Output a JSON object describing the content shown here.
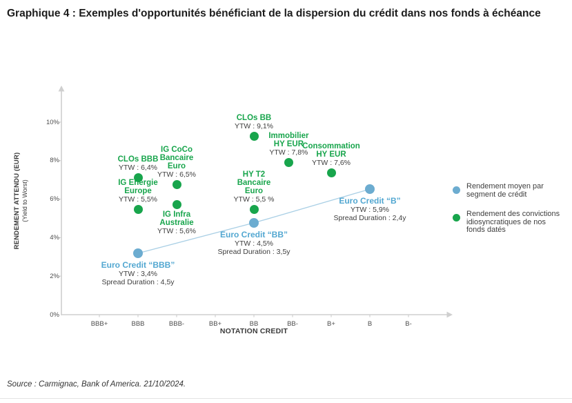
{
  "page": {
    "title": "Graphique 4 : Exemples d'opportunités bénéficiant de la dispersion du crédit dans nos fonds à échéance",
    "source": "Source : Carmignac, Bank of America. 21/10/2024."
  },
  "chart_data": {
    "type": "scatter",
    "title": "Graphique 4 : Exemples d'opportunités bénéficiant de la dispersion du crédit dans nos fonds à échéance",
    "xlabel": "NOTATION CREDIT",
    "ylabel": "RENDEMENT ATTENDU (EUR)",
    "ylabel_sub": "(Yield to Worst)",
    "x_ticks": [
      "BBB+",
      "BBB",
      "BBB-",
      "BB+",
      "BB",
      "BB-",
      "B+",
      "B",
      "B-"
    ],
    "y_ticks": [
      "0%",
      "2%",
      "4%",
      "6%",
      "8%",
      "10%"
    ],
    "y_tick_values": [
      0,
      2,
      4,
      6,
      8,
      10
    ],
    "ylim": [
      0,
      11.6
    ],
    "grid": false,
    "legend_position": "right",
    "colors": {
      "segment_dot": "#6cacd0",
      "segment_text": "#52a7d1",
      "segment_line": "#a9cfe5",
      "convictions": "#18a54c",
      "axis": "#cfcfcf",
      "dark_text": "#3e3e3e"
    },
    "series": [
      {
        "id": "segment-moyen",
        "name": "Rendement moyen par segment de crédit",
        "style": "scatter-line",
        "color": "#6cacd0",
        "points": [
          {
            "name_lines": [
              "Euro Credit “BBB”"
            ],
            "rating": "BBB",
            "x_value": 1.0,
            "y_plot": 3.19,
            "ytw_value": 3.4,
            "ytw_label": "YTW : 3,4%",
            "spread_duration_years": 4.5,
            "spread_label": "Spread Duration : 4,5y",
            "label_position": "below"
          },
          {
            "name_lines": [
              "Euro Credit “BB”"
            ],
            "rating": "BB",
            "x_value": 4.0,
            "y_plot": 4.77,
            "ytw_value": 4.5,
            "ytw_label": "YTW : 4,5%",
            "spread_duration_years": 3.5,
            "spread_label": "Spread Duration : 3,5y",
            "label_position": "below"
          },
          {
            "name_lines": [
              "Euro Credit “B”"
            ],
            "rating": "B",
            "x_value": 7.0,
            "y_plot": 6.52,
            "ytw_value": 5.9,
            "ytw_label": "YTW : 5,9%",
            "spread_duration_years": 2.4,
            "spread_label": "Spread Duration : 2,4y",
            "label_position": "below"
          }
        ]
      },
      {
        "id": "convictions",
        "name": "Rendement des convictions idiosyncratiques de nos fonds datés",
        "style": "scatter",
        "color": "#18a54c",
        "points": [
          {
            "name_lines": [
              "CLOs BBB"
            ],
            "rating": "BBB",
            "x_value": 1.0,
            "y_plot": 7.1,
            "ytw_value": 6.4,
            "ytw_label": "YTW : 6,4%",
            "label_position": "above"
          },
          {
            "name_lines": [
              "IG Energie",
              "Europe"
            ],
            "rating": "BBB",
            "x_value": 1.0,
            "y_plot": 5.45,
            "ytw_value": 5.5,
            "ytw_label": "YTW : 5,5%",
            "label_position": "above"
          },
          {
            "name_lines": [
              "IG CoCo",
              "Bancaire",
              "Euro"
            ],
            "rating": "BBB-",
            "x_value": 2.0,
            "y_plot": 6.74,
            "ytw_value": 6.5,
            "ytw_label": "YTW : 6,5%",
            "label_position": "above"
          },
          {
            "name_lines": [
              "IG Infra",
              "Australie"
            ],
            "rating": "BBB-",
            "x_value": 2.0,
            "y_plot": 5.7,
            "ytw_value": 5.6,
            "ytw_label": "YTW : 5,6%",
            "label_position": "below"
          },
          {
            "name_lines": [
              "CLOs BB"
            ],
            "rating": "BB",
            "x_value": 4.0,
            "y_plot": 9.28,
            "ytw_value": 9.1,
            "ytw_label": "YTW : 9,1%",
            "label_position": "above"
          },
          {
            "name_lines": [
              "HY T2",
              "Bancaire",
              "Euro"
            ],
            "rating": "BB",
            "x_value": 4.0,
            "y_plot": 5.48,
            "ytw_value": 5.5,
            "ytw_label": "YTW : 5,5 %",
            "label_position": "above"
          },
          {
            "name_lines": [
              "Immobilier",
              "HY EUR"
            ],
            "rating": "BB-",
            "x_value": 4.9,
            "y_plot": 7.89,
            "ytw_value": 7.8,
            "ytw_label": "YTW : 7,8%",
            "label_position": "above"
          },
          {
            "name_lines": [
              "Consommation",
              "HY EUR"
            ],
            "rating": "B+",
            "x_value": 6.0,
            "y_plot": 7.38,
            "ytw_value": 7.6,
            "ytw_label": "YTW : 7,6%",
            "label_position": "above"
          }
        ]
      }
    ]
  }
}
